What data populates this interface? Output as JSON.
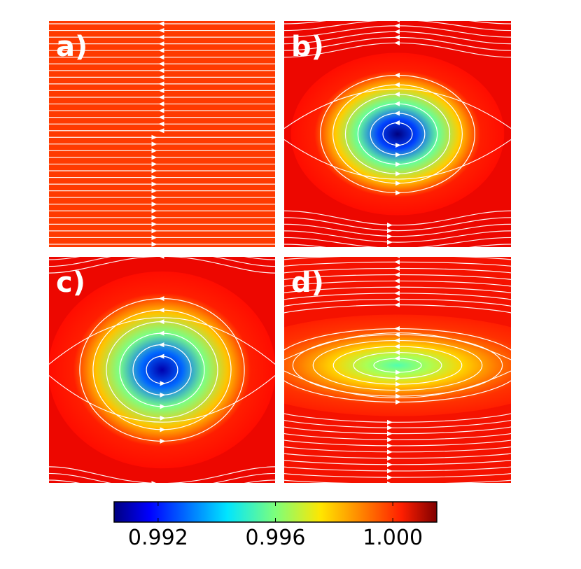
{
  "chart_data": {
    "type": "heatmap",
    "description_note": "Four streamline panels over a scalar field colored with the jet colormap",
    "panels": [
      {
        "label": "a)",
        "vortex_center": null,
        "vortex_min": 1.0,
        "background": 0.9995,
        "flow": "shear: leftward upper half, rightward lower half"
      },
      {
        "label": "b)",
        "vortex_center": [
          0.5,
          0.5
        ],
        "vortex_min": 0.9905,
        "background": 1.0,
        "flow": "counter-clockwise vortex in shear flow"
      },
      {
        "label": "c)",
        "vortex_center": [
          0.5,
          0.5
        ],
        "vortex_min": 0.991,
        "background": 1.0,
        "flow": "counter-clockwise vortex in shear flow"
      },
      {
        "label": "d)",
        "vortex_center": [
          0.5,
          0.5
        ],
        "vortex_min": 0.9955,
        "background": 0.9998,
        "flow": "elongated vortex in shear flow"
      }
    ],
    "colorbar": {
      "colormap": "jet",
      "range": [
        0.9905,
        1.0015
      ],
      "ticks": [
        0.992,
        0.996,
        1.0
      ],
      "tick_labels": [
        "0.992",
        "0.996",
        "1.000"
      ]
    }
  },
  "colors": {
    "streamline": "#ffffff",
    "frame": "#000000"
  }
}
